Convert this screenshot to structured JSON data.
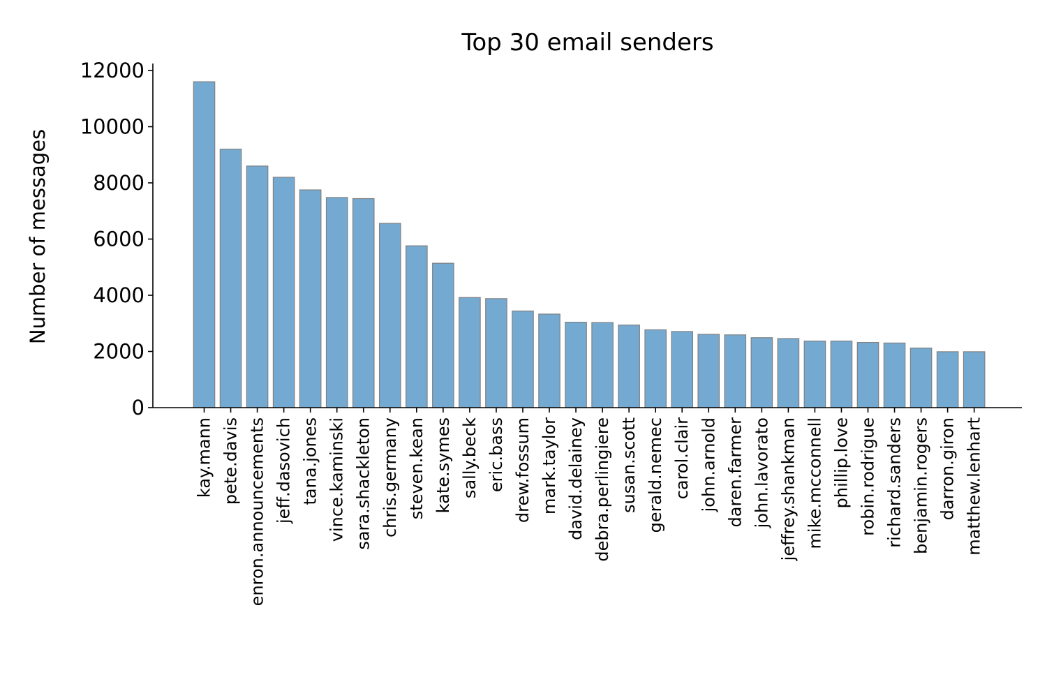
{
  "chart_data": {
    "type": "bar",
    "title": "Top 30 email senders",
    "xlabel": "",
    "ylabel": "Number of messages",
    "ylim": [
      0,
      12200
    ],
    "yticks": [
      0,
      2000,
      4000,
      6000,
      8000,
      10000,
      12000
    ],
    "ytick_labels": [
      "0",
      "2000",
      "4000",
      "6000",
      "8000",
      "10000",
      "12000"
    ],
    "grid": false,
    "bar_color": "#74aad2",
    "bar_edge_color": "#808080",
    "categories": [
      "kay.mann",
      "pete.davis",
      "enron.announcements",
      "jeff.dasovich",
      "tana.jones",
      "vince.kaminski",
      "sara.shackleton",
      "chris.germany",
      "steven.kean",
      "kate.symes",
      "sally.beck",
      "eric.bass",
      "drew.fossum",
      "mark.taylor",
      "david.delainey",
      "debra.perlingiere",
      "susan.scott",
      "gerald.nemec",
      "carol.clair",
      "john.arnold",
      "daren.farmer",
      "john.lavorato",
      "jeffrey.shankman",
      "mike.mcconnell",
      "phillip.love",
      "robin.rodrigue",
      "richard.sanders",
      "benjamin.rogers",
      "darron.giron",
      "matthew.lenhart"
    ],
    "values": [
      11600,
      9200,
      8600,
      8200,
      7750,
      7480,
      7440,
      6560,
      5760,
      5140,
      3920,
      3880,
      3440,
      3330,
      3040,
      3030,
      2940,
      2770,
      2710,
      2610,
      2590,
      2490,
      2460,
      2370,
      2370,
      2320,
      2300,
      2120,
      1990,
      1990
    ]
  }
}
